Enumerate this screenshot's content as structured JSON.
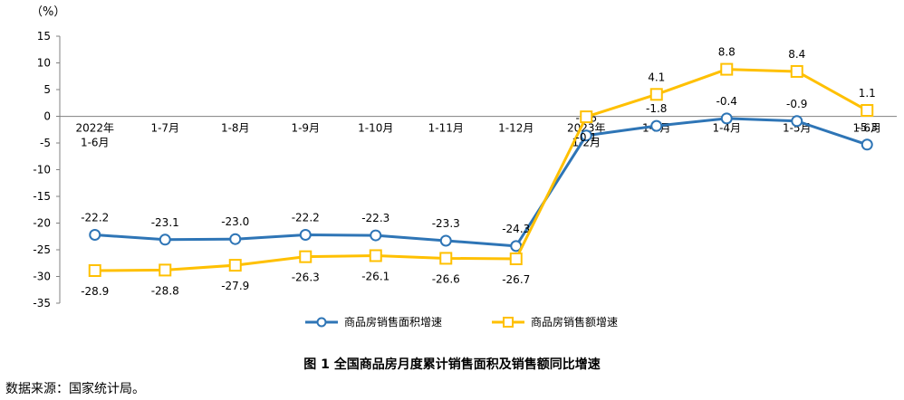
{
  "chart_data": {
    "type": "line",
    "yunit": "（%）",
    "categories": [
      "2022年\n1-6月",
      "1-7月",
      "1-8月",
      "1-9月",
      "1-10月",
      "1-11月",
      "1-12月",
      "2023年\n1-2月",
      "1-3月",
      "1-4月",
      "1-5月",
      "1-6月"
    ],
    "ylim": [
      -35,
      15
    ],
    "yticks": [
      15,
      10,
      5,
      0,
      -5,
      -10,
      -15,
      -20,
      -25,
      -30,
      -35
    ],
    "legend_position": "bottom",
    "grid": false,
    "series": [
      {
        "name": "商品房销售面积增速",
        "color": "#2E75B6",
        "marker": "circle",
        "values": [
          -22.2,
          -23.1,
          -23.0,
          -22.2,
          -22.3,
          -23.3,
          -24.3,
          -3.6,
          -1.8,
          -0.4,
          -0.9,
          -5.3
        ],
        "labels": [
          "-22.2",
          "-23.1",
          "-23.0",
          "-22.2",
          "-22.3",
          "-23.3",
          "-24.3",
          "-3.6",
          "-1.8",
          "-0.4",
          "-0.9",
          "-5.3"
        ]
      },
      {
        "name": "商品房销售额增速",
        "color": "#FFC000",
        "marker": "square",
        "values": [
          -28.9,
          -28.8,
          -27.9,
          -26.3,
          -26.1,
          -26.6,
          -26.7,
          -0.1,
          4.1,
          8.8,
          8.4,
          1.1
        ],
        "labels": [
          "-28.9",
          "-28.8",
          "-27.9",
          "-26.3",
          "-26.1",
          "-26.6",
          "-26.7",
          "-0.1",
          "4.1",
          "8.8",
          "8.4",
          "1.1"
        ]
      }
    ]
  },
  "caption": "图 1  全国商品房月度累计销售面积及销售额同比增速",
  "source": "数据来源：国家统计局。"
}
